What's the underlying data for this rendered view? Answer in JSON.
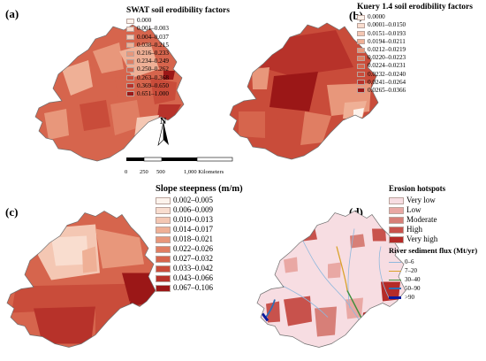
{
  "panels": {
    "a": {
      "label": "(a)",
      "legend_title": "SWAT soil erodibility factors",
      "classes": [
        {
          "label": "0.000",
          "color": "#fdf3ec"
        },
        {
          "label": "0.001–0.003",
          "color": "#f9ddcf"
        },
        {
          "label": "0.004–0.037",
          "color": "#f4c7b3"
        },
        {
          "label": "0.038–0.215",
          "color": "#efb096"
        },
        {
          "label": "0.216–0.233",
          "color": "#e8977b"
        },
        {
          "label": "0.234–0.249",
          "color": "#e07e63"
        },
        {
          "label": "0.250–0.262",
          "color": "#d6654d"
        },
        {
          "label": "0.263–0.368",
          "color": "#c94c3a"
        },
        {
          "label": "0.369–0.650",
          "color": "#b7322a"
        },
        {
          "label": "0.651–1.000",
          "color": "#9b1717"
        }
      ]
    },
    "b": {
      "label": "(b)",
      "legend_title": "Kuery 1.4 soil erodibility factors",
      "classes": [
        {
          "label": "0.0000",
          "color": "#fdf3ec"
        },
        {
          "label": "0.0001–0.0150",
          "color": "#f9ddcf"
        },
        {
          "label": "0.0151–0.0193",
          "color": "#f4c7b3"
        },
        {
          "label": "0.0194–0.0211",
          "color": "#efb096"
        },
        {
          "label": "0.0212–0.0219",
          "color": "#e8977b"
        },
        {
          "label": "0.0220–0.0223",
          "color": "#e07e63"
        },
        {
          "label": "0.0224–0.0231",
          "color": "#d6654d"
        },
        {
          "label": "0.0232–0.0240",
          "color": "#c94c3a"
        },
        {
          "label": "0.0241–0.0264",
          "color": "#b7322a"
        },
        {
          "label": "0.0265–0.0366",
          "color": "#9b1717"
        }
      ]
    },
    "c": {
      "label": "(c)",
      "legend_title": "Slope steepness (m/m)",
      "classes": [
        {
          "label": "0.002–0.005",
          "color": "#fdf3ec"
        },
        {
          "label": "0.006–0.009",
          "color": "#f9ddcf"
        },
        {
          "label": "0.010–0.013",
          "color": "#f4c7b3"
        },
        {
          "label": "0.014–0.017",
          "color": "#efb096"
        },
        {
          "label": "0.018–0.021",
          "color": "#e8977b"
        },
        {
          "label": "0.022–0.026",
          "color": "#e07e63"
        },
        {
          "label": "0.027–0.032",
          "color": "#d6654d"
        },
        {
          "label": "0.033–0.042",
          "color": "#c94c3a"
        },
        {
          "label": "0.043–0.066",
          "color": "#b7322a"
        },
        {
          "label": "0.067–0.106",
          "color": "#9b1717"
        }
      ]
    },
    "d": {
      "label": "(d)",
      "legend_title": "Erosion hotspots",
      "classes": [
        {
          "label": "Very low",
          "color": "#f7dde2"
        },
        {
          "label": "Low",
          "color": "#e9a8a4"
        },
        {
          "label": "Moderate",
          "color": "#d77f78"
        },
        {
          "label": "High",
          "color": "#c8524c"
        },
        {
          "label": "Very high",
          "color": "#b52b28"
        }
      ],
      "flux_title": "River sediment flux (Mt/yr)",
      "flux_classes": [
        {
          "label": "0–6",
          "color": "#8fb8dd"
        },
        {
          "label": "7–20",
          "color": "#d9a22a"
        },
        {
          "label": "30–40",
          "color": "#3e8e3a"
        },
        {
          "label": "50–90",
          "color": "#2f6fb5"
        },
        {
          "label": ">90",
          "color": "#0a1a9e"
        }
      ]
    }
  },
  "map": {
    "north_label": "N",
    "scale_ticks": [
      "0",
      "250",
      "500",
      "1,000 Kilometers"
    ],
    "outside_color": "#ffffff",
    "border_color": "#6e6e6e"
  }
}
